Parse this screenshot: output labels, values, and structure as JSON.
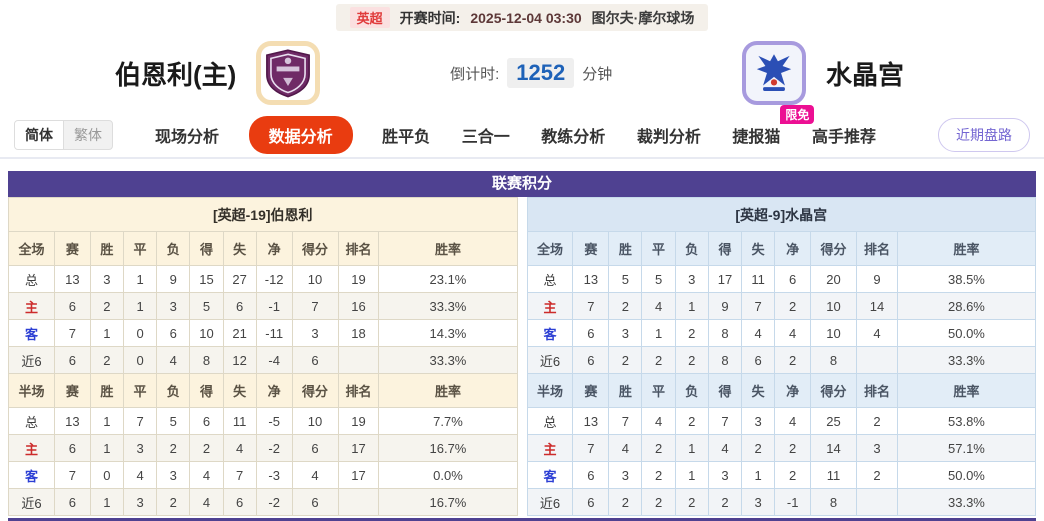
{
  "top_bar": {
    "league": "英超",
    "kickoff_label": "开赛时间:",
    "kickoff_time": "2025-12-04 03:30",
    "venue": "图尔夫·摩尔球场"
  },
  "header": {
    "home_team": "伯恩利(主)",
    "away_team": "水晶宫",
    "countdown_label": "倒计时:",
    "countdown_value": "1252",
    "countdown_unit": "分钟"
  },
  "nav": {
    "lang_simplified": "简体",
    "lang_traditional": "繁体",
    "items": [
      "现场分析",
      "数据分析",
      "胜平负",
      "三合一",
      "教练分析",
      "裁判分析",
      "捷报猫",
      "高手推荐"
    ],
    "active_item": "数据分析",
    "badge_item": "捷报猫",
    "badge": "限免",
    "recent_button": "近期盘路"
  },
  "section": {
    "title": "联赛积分"
  },
  "tables": {
    "columns_full": [
      "全场",
      "赛",
      "胜",
      "平",
      "负",
      "得",
      "失",
      "净",
      "得分",
      "排名",
      "胜率"
    ],
    "columns_half": [
      "半场",
      "赛",
      "胜",
      "平",
      "负",
      "得",
      "失",
      "净",
      "得分",
      "排名",
      "胜率"
    ],
    "home": {
      "team_header": "[英超-19]伯恩利",
      "full": [
        [
          "总",
          "13",
          "3",
          "1",
          "9",
          "15",
          "27",
          "-12",
          "10",
          "19",
          "23.1%"
        ],
        [
          "主",
          "6",
          "2",
          "1",
          "3",
          "5",
          "6",
          "-1",
          "7",
          "16",
          "33.3%"
        ],
        [
          "客",
          "7",
          "1",
          "0",
          "6",
          "10",
          "21",
          "-11",
          "3",
          "18",
          "14.3%"
        ],
        [
          "近6",
          "6",
          "2",
          "0",
          "4",
          "8",
          "12",
          "-4",
          "6",
          "",
          "33.3%"
        ]
      ],
      "half": [
        [
          "总",
          "13",
          "1",
          "7",
          "5",
          "6",
          "11",
          "-5",
          "10",
          "19",
          "7.7%"
        ],
        [
          "主",
          "6",
          "1",
          "3",
          "2",
          "2",
          "4",
          "-2",
          "6",
          "17",
          "16.7%"
        ],
        [
          "客",
          "7",
          "0",
          "4",
          "3",
          "4",
          "7",
          "-3",
          "4",
          "17",
          "0.0%"
        ],
        [
          "近6",
          "6",
          "1",
          "3",
          "2",
          "4",
          "6",
          "-2",
          "6",
          "",
          "16.7%"
        ]
      ]
    },
    "away": {
      "team_header": "[英超-9]水晶宫",
      "full": [
        [
          "总",
          "13",
          "5",
          "5",
          "3",
          "17",
          "11",
          "6",
          "20",
          "9",
          "38.5%"
        ],
        [
          "主",
          "7",
          "2",
          "4",
          "1",
          "9",
          "7",
          "2",
          "10",
          "14",
          "28.6%"
        ],
        [
          "客",
          "6",
          "3",
          "1",
          "2",
          "8",
          "4",
          "4",
          "10",
          "4",
          "50.0%"
        ],
        [
          "近6",
          "6",
          "2",
          "2",
          "2",
          "8",
          "6",
          "2",
          "8",
          "",
          "33.3%"
        ]
      ],
      "half": [
        [
          "总",
          "13",
          "7",
          "4",
          "2",
          "7",
          "3",
          "4",
          "25",
          "2",
          "53.8%"
        ],
        [
          "主",
          "7",
          "4",
          "2",
          "1",
          "4",
          "2",
          "2",
          "14",
          "3",
          "57.1%"
        ],
        [
          "客",
          "6",
          "3",
          "2",
          "1",
          "3",
          "1",
          "2",
          "11",
          "2",
          "50.0%"
        ],
        [
          "近6",
          "6",
          "2",
          "2",
          "2",
          "2",
          "3",
          "-1",
          "8",
          "",
          "33.3%"
        ]
      ]
    }
  },
  "colors": {
    "section_header": "#4f4191",
    "nav_active": "#e93c10",
    "badge": "#ec0f93",
    "home_header_bg": "#fcf3de",
    "away_header_bg": "#d9e6f3",
    "countdown_value": "#1e62b8",
    "home_label": "#cc2b2b",
    "away_label": "#2c3fd4",
    "league_badge_text": "#e03b3b"
  }
}
